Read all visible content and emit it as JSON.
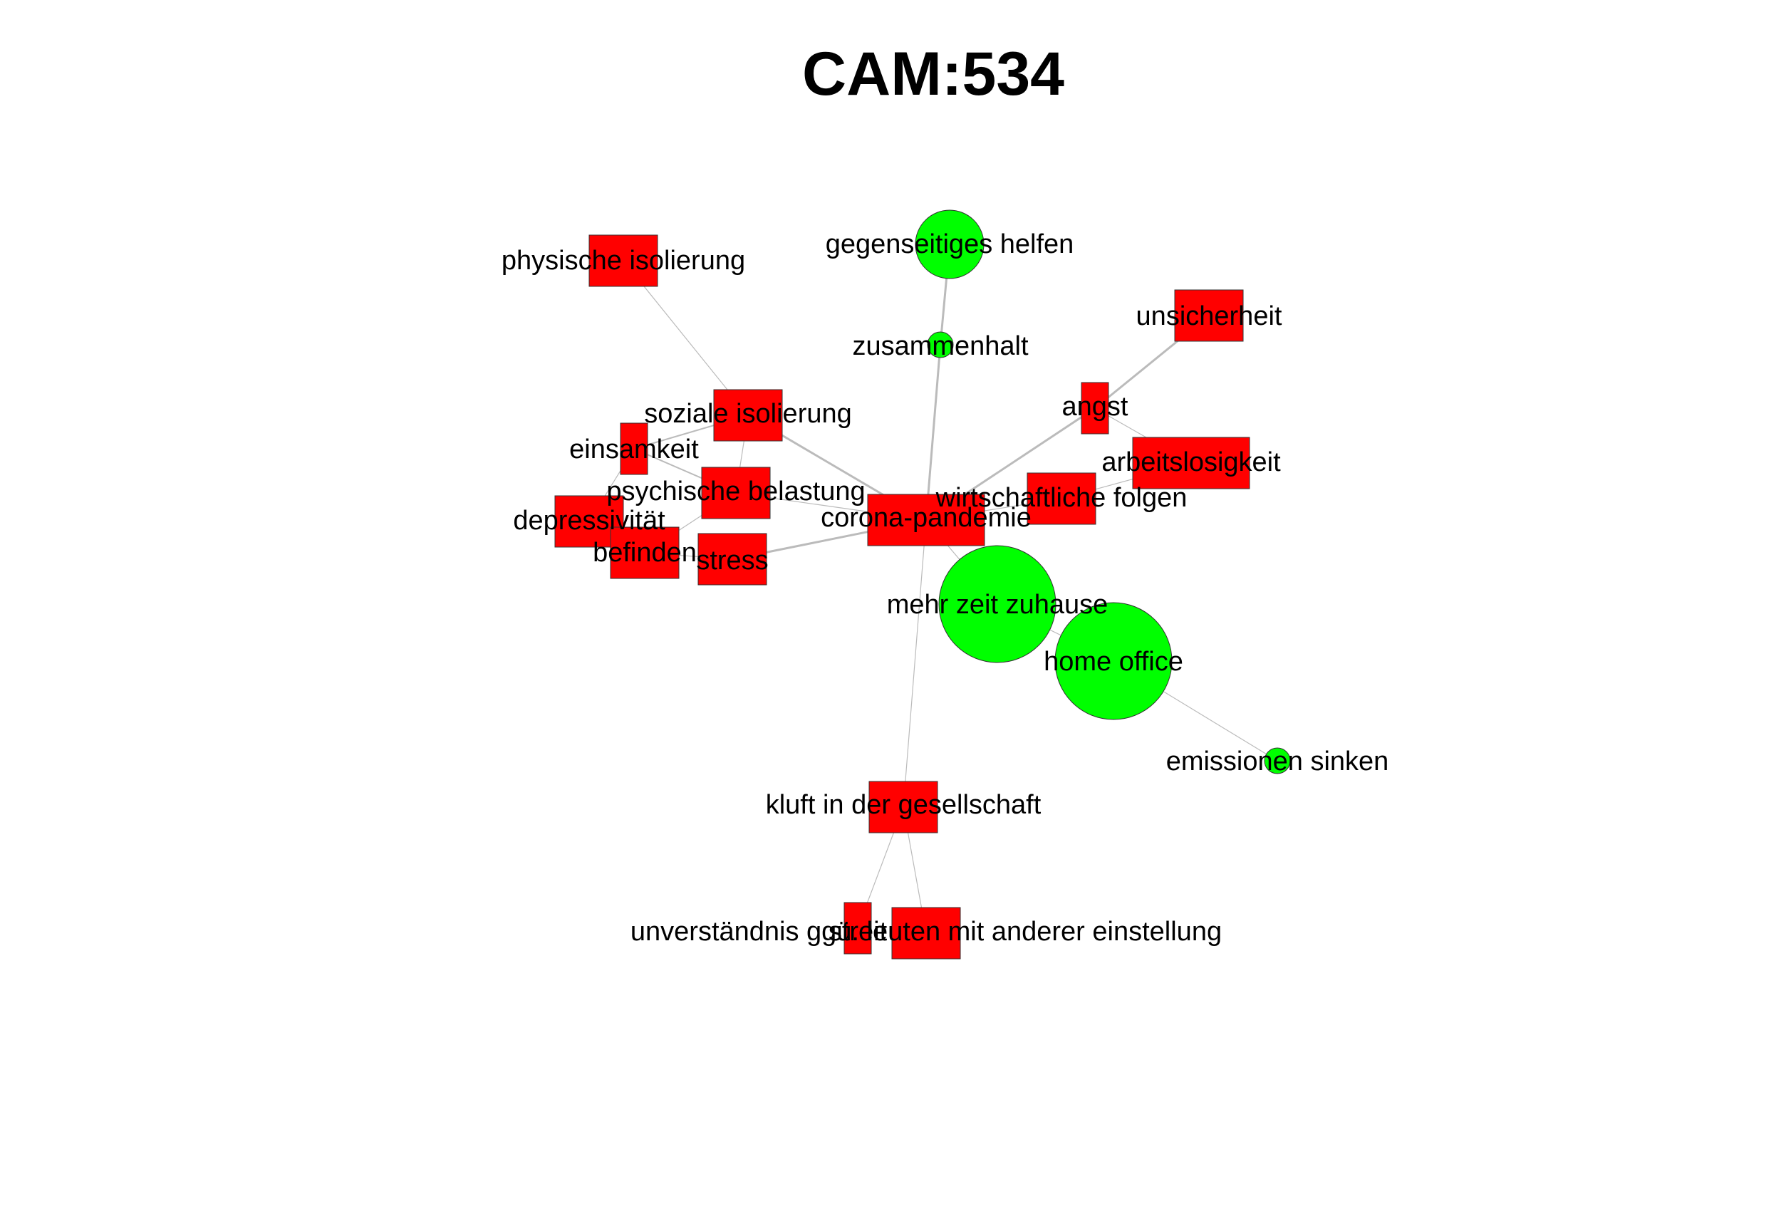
{
  "title": "CAM:534",
  "colors": {
    "negative_node": "#ff0000",
    "positive_node": "#00ff00",
    "edge": "#bbbbbb",
    "label": "#000000"
  },
  "nodes": [
    {
      "id": "physische_isolierung",
      "label": "physische isolierung",
      "valence": "negative"
    },
    {
      "id": "gegenseitiges_helfen",
      "label": "gegenseitiges helfen",
      "valence": "positive"
    },
    {
      "id": "zusammenhalt",
      "label": "zusammenhalt",
      "valence": "positive"
    },
    {
      "id": "unsicherheit",
      "label": "unsicherheit",
      "valence": "negative"
    },
    {
      "id": "soziale_isolierung",
      "label": "soziale isolierung",
      "valence": "negative"
    },
    {
      "id": "angst",
      "label": "angst",
      "valence": "negative"
    },
    {
      "id": "einsamkeit",
      "label": "einsamkeit",
      "valence": "negative"
    },
    {
      "id": "arbeitslosigkeit",
      "label": "arbeitslosigkeit",
      "valence": "negative"
    },
    {
      "id": "psychische_belastung",
      "label": "psychische belastung",
      "valence": "negative"
    },
    {
      "id": "wirtschaftliche_folgen",
      "label": "wirtschaftliche folgen",
      "valence": "negative"
    },
    {
      "id": "depressivitaet",
      "label": "depressivität",
      "valence": "negative"
    },
    {
      "id": "corona_pandemie",
      "label": "corona-pandemie",
      "valence": "negative"
    },
    {
      "id": "befinden",
      "label": "befinden",
      "valence": "negative"
    },
    {
      "id": "stress",
      "label": "stress",
      "valence": "negative"
    },
    {
      "id": "mehr_zeit_zuhause",
      "label": "mehr zeit zuhause",
      "valence": "positive"
    },
    {
      "id": "home_office",
      "label": "home office",
      "valence": "positive"
    },
    {
      "id": "emissionen_sinken",
      "label": "emissionen sinken",
      "valence": "positive"
    },
    {
      "id": "kluft",
      "label": "kluft in der gesellschaft",
      "valence": "negative"
    },
    {
      "id": "unverstaendnis",
      "label": "unverständnis ggü. leuten mit anderer einstellung",
      "valence": "negative"
    },
    {
      "id": "streit",
      "label": "streit",
      "valence": "negative"
    }
  ],
  "edges": [
    [
      "physische_isolierung",
      "soziale_isolierung"
    ],
    [
      "gegenseitiges_helfen",
      "zusammenhalt"
    ],
    [
      "zusammenhalt",
      "corona_pandemie"
    ],
    [
      "unsicherheit",
      "angst"
    ],
    [
      "angst",
      "corona_pandemie"
    ],
    [
      "angst",
      "arbeitslosigkeit"
    ],
    [
      "arbeitslosigkeit",
      "wirtschaftliche_folgen"
    ],
    [
      "wirtschaftliche_folgen",
      "corona_pandemie"
    ],
    [
      "soziale_isolierung",
      "corona_pandemie"
    ],
    [
      "soziale_isolierung",
      "einsamkeit"
    ],
    [
      "soziale_isolierung",
      "psychische_belastung"
    ],
    [
      "einsamkeit",
      "depressivitaet"
    ],
    [
      "einsamkeit",
      "psychische_belastung"
    ],
    [
      "psychische_belastung",
      "corona_pandemie"
    ],
    [
      "psychische_belastung",
      "befinden"
    ],
    [
      "stress",
      "corona_pandemie"
    ],
    [
      "stress",
      "befinden"
    ],
    [
      "depressivitaet",
      "befinden"
    ],
    [
      "corona_pandemie",
      "mehr_zeit_zuhause"
    ],
    [
      "mehr_zeit_zuhause",
      "home_office"
    ],
    [
      "home_office",
      "emissionen_sinken"
    ],
    [
      "corona_pandemie",
      "kluft"
    ],
    [
      "kluft",
      "unverstaendnis"
    ],
    [
      "kluft",
      "streit"
    ]
  ]
}
